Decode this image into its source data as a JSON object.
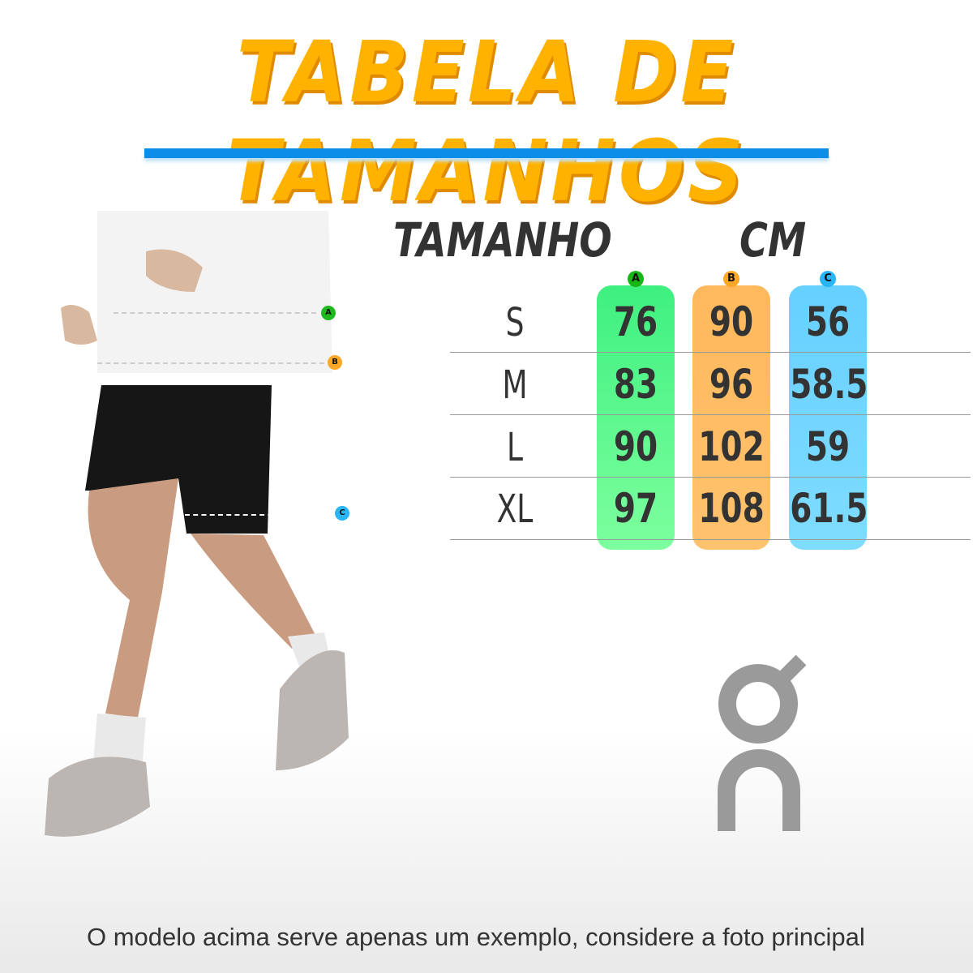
{
  "title": "TABELA DE TAMANHOS",
  "headers": {
    "size": "TAMANHO",
    "unit": "CM"
  },
  "columns": [
    {
      "key": "A",
      "color": "#3ef07f"
    },
    {
      "key": "B",
      "color": "#ffb85c"
    },
    {
      "key": "C",
      "color": "#66d0ff"
    }
  ],
  "rows": [
    {
      "size": "S",
      "a": "76",
      "b": "90",
      "c": "56"
    },
    {
      "size": "M",
      "a": "83",
      "b": "96",
      "c": "58.5"
    },
    {
      "size": "L",
      "a": "90",
      "b": "102",
      "c": "59"
    },
    {
      "size": "XL",
      "a": "97",
      "b": "108",
      "c": "61.5"
    }
  ],
  "markers": [
    "A",
    "B",
    "C"
  ],
  "brand_logo": "On",
  "footer": "O modelo acima serve apenas um exemplo, considere a foto principal",
  "accent": {
    "title": "#ffb300",
    "bar": "#0a8ee8"
  }
}
